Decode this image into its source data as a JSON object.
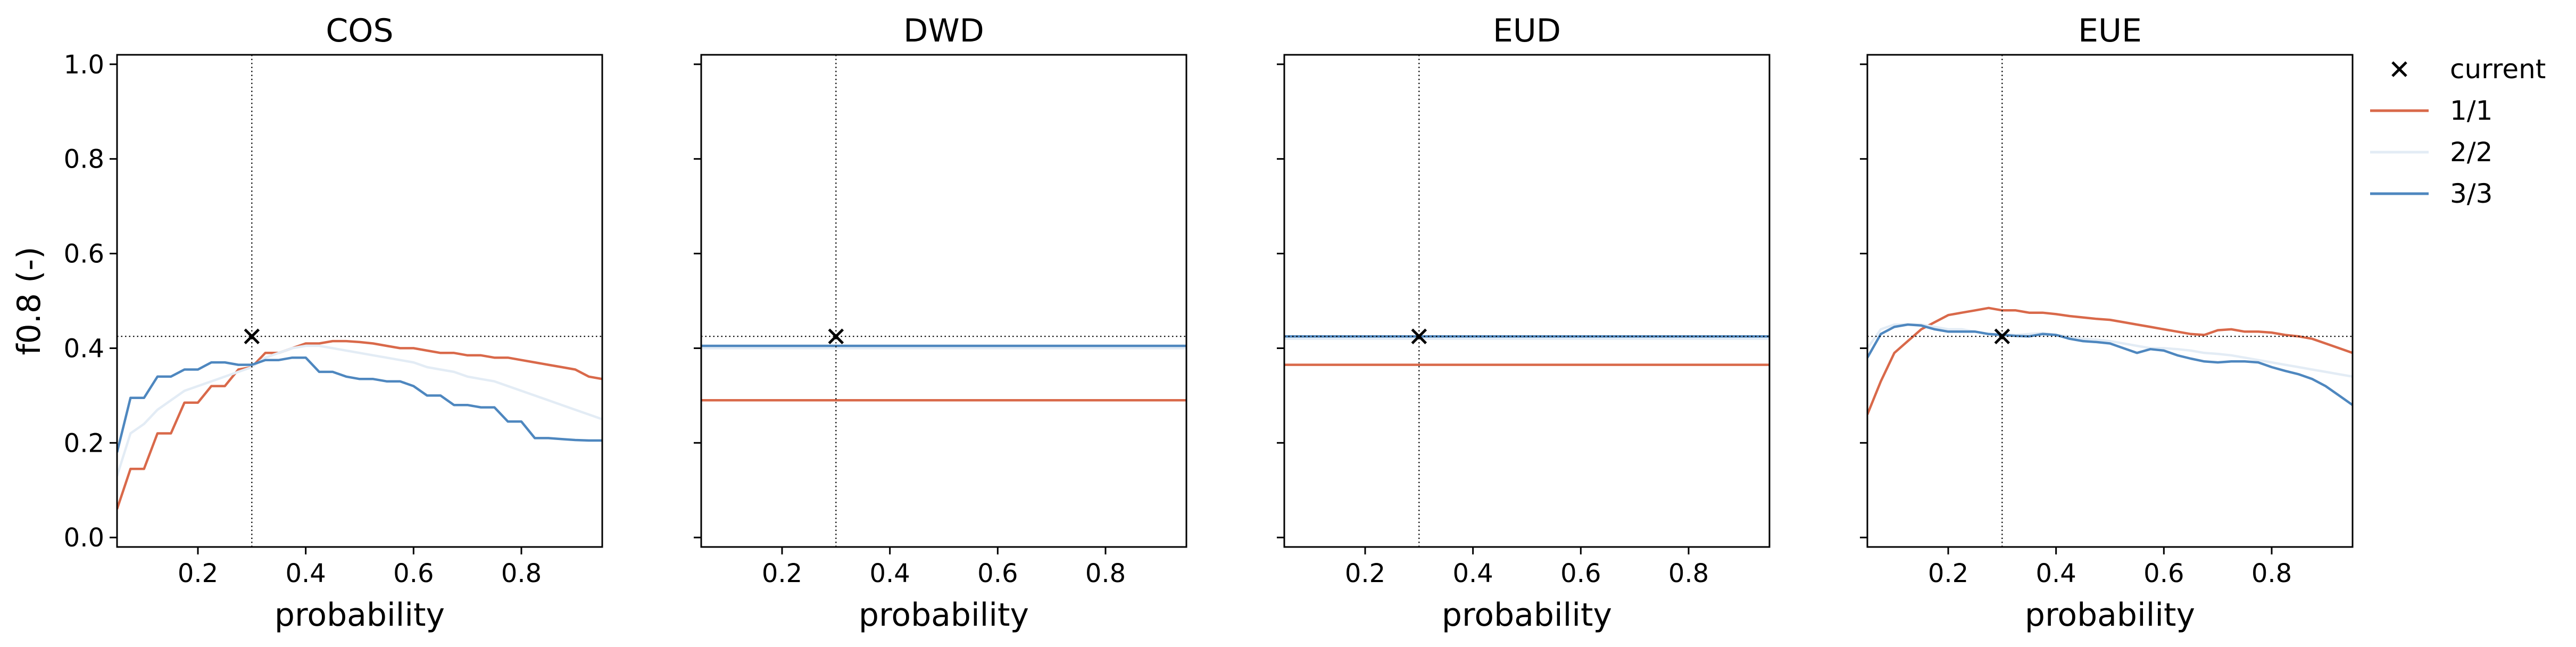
{
  "chart_data": [
    {
      "type": "line",
      "title": "COS",
      "xlabel": "probability",
      "ylabel": "f0.8 (-)",
      "xlim": [
        0.05,
        0.95
      ],
      "ylim": [
        -0.02,
        1.02
      ],
      "xticks": [
        "0.2",
        "0.4",
        "0.6",
        "0.8"
      ],
      "yticks": [
        "0.0",
        "0.2",
        "0.4",
        "0.6",
        "0.8",
        "1.0"
      ],
      "reference_x": 0.3,
      "reference_y": 0.425,
      "current": {
        "x": 0.3,
        "y": 0.425
      },
      "x": [
        0.05,
        0.075,
        0.1,
        0.125,
        0.15,
        0.175,
        0.2,
        0.225,
        0.25,
        0.275,
        0.3,
        0.325,
        0.35,
        0.375,
        0.4,
        0.425,
        0.45,
        0.475,
        0.5,
        0.525,
        0.55,
        0.575,
        0.6,
        0.625,
        0.65,
        0.675,
        0.7,
        0.725,
        0.75,
        0.775,
        0.8,
        0.825,
        0.85,
        0.875,
        0.9,
        0.925,
        0.95
      ],
      "series": [
        {
          "name": "1/1",
          "values": [
            0.06,
            0.145,
            0.145,
            0.22,
            0.22,
            0.285,
            0.285,
            0.32,
            0.32,
            0.355,
            0.36,
            0.39,
            0.39,
            0.4,
            0.41,
            0.41,
            0.415,
            0.415,
            0.413,
            0.41,
            0.405,
            0.4,
            0.4,
            0.395,
            0.39,
            0.39,
            0.385,
            0.385,
            0.38,
            0.38,
            0.375,
            0.37,
            0.365,
            0.36,
            0.355,
            0.34,
            0.335
          ]
        },
        {
          "name": "2/2",
          "values": [
            0.13,
            0.22,
            0.24,
            0.27,
            0.29,
            0.31,
            0.32,
            0.33,
            0.34,
            0.35,
            0.36,
            0.38,
            0.39,
            0.4,
            0.405,
            0.405,
            0.4,
            0.395,
            0.39,
            0.385,
            0.38,
            0.375,
            0.37,
            0.36,
            0.355,
            0.35,
            0.34,
            0.335,
            0.33,
            0.32,
            0.31,
            0.3,
            0.29,
            0.28,
            0.27,
            0.26,
            0.25
          ]
        },
        {
          "name": "3/3",
          "values": [
            0.18,
            0.295,
            0.295,
            0.34,
            0.34,
            0.355,
            0.355,
            0.37,
            0.37,
            0.365,
            0.365,
            0.375,
            0.375,
            0.38,
            0.38,
            0.35,
            0.35,
            0.34,
            0.335,
            0.335,
            0.33,
            0.33,
            0.32,
            0.3,
            0.3,
            0.28,
            0.28,
            0.275,
            0.275,
            0.245,
            0.245,
            0.21,
            0.21,
            0.208,
            0.206,
            0.205,
            0.205
          ]
        }
      ]
    },
    {
      "type": "line",
      "title": "DWD",
      "xlabel": "probability",
      "ylabel": "",
      "xlim": [
        0.05,
        0.95
      ],
      "ylim": [
        -0.02,
        1.02
      ],
      "xticks": [
        "0.2",
        "0.4",
        "0.6",
        "0.8"
      ],
      "yticks": [],
      "reference_x": 0.3,
      "reference_y": 0.425,
      "current": {
        "x": 0.3,
        "y": 0.425
      },
      "x": [
        0.05,
        0.95
      ],
      "series": [
        {
          "name": "1/1",
          "values": [
            0.29,
            0.29
          ]
        },
        {
          "name": "2/2",
          "values": [
            0.4,
            0.4
          ]
        },
        {
          "name": "3/3",
          "values": [
            0.405,
            0.405
          ]
        }
      ]
    },
    {
      "type": "line",
      "title": "EUD",
      "xlabel": "probability",
      "ylabel": "",
      "xlim": [
        0.05,
        0.95
      ],
      "ylim": [
        -0.02,
        1.02
      ],
      "xticks": [
        "0.2",
        "0.4",
        "0.6",
        "0.8"
      ],
      "yticks": [],
      "reference_x": 0.3,
      "reference_y": 0.425,
      "current": {
        "x": 0.3,
        "y": 0.425
      },
      "x": [
        0.05,
        0.95
      ],
      "series": [
        {
          "name": "1/1",
          "values": [
            0.365,
            0.365
          ]
        },
        {
          "name": "2/2",
          "values": [
            0.42,
            0.42
          ]
        },
        {
          "name": "3/3",
          "values": [
            0.425,
            0.425
          ]
        }
      ]
    },
    {
      "type": "line",
      "title": "EUE",
      "xlabel": "probability",
      "ylabel": "",
      "xlim": [
        0.05,
        0.95
      ],
      "ylim": [
        -0.02,
        1.02
      ],
      "xticks": [
        "0.2",
        "0.4",
        "0.6",
        "0.8"
      ],
      "yticks": [],
      "reference_x": 0.3,
      "reference_y": 0.425,
      "current": {
        "x": 0.3,
        "y": 0.425
      },
      "x": [
        0.05,
        0.075,
        0.1,
        0.125,
        0.15,
        0.175,
        0.2,
        0.225,
        0.25,
        0.275,
        0.3,
        0.325,
        0.35,
        0.375,
        0.4,
        0.425,
        0.45,
        0.475,
        0.5,
        0.525,
        0.55,
        0.575,
        0.6,
        0.625,
        0.65,
        0.675,
        0.7,
        0.725,
        0.75,
        0.775,
        0.8,
        0.825,
        0.85,
        0.875,
        0.9,
        0.925,
        0.95
      ],
      "series": [
        {
          "name": "1/1",
          "values": [
            0.26,
            0.33,
            0.39,
            0.415,
            0.44,
            0.455,
            0.47,
            0.475,
            0.48,
            0.485,
            0.48,
            0.48,
            0.475,
            0.475,
            0.472,
            0.468,
            0.465,
            0.462,
            0.46,
            0.455,
            0.45,
            0.445,
            0.44,
            0.435,
            0.43,
            0.428,
            0.438,
            0.44,
            0.435,
            0.435,
            0.433,
            0.428,
            0.425,
            0.42,
            0.41,
            0.4,
            0.39
          ]
        },
        {
          "name": "2/2",
          "values": [
            0.4,
            0.44,
            0.45,
            0.45,
            0.45,
            0.445,
            0.44,
            0.44,
            0.435,
            0.43,
            0.43,
            0.428,
            0.43,
            0.432,
            0.428,
            0.425,
            0.42,
            0.418,
            0.415,
            0.41,
            0.405,
            0.4,
            0.4,
            0.398,
            0.395,
            0.39,
            0.388,
            0.385,
            0.38,
            0.375,
            0.37,
            0.365,
            0.36,
            0.355,
            0.35,
            0.345,
            0.34
          ]
        },
        {
          "name": "3/3",
          "values": [
            0.38,
            0.43,
            0.445,
            0.45,
            0.448,
            0.44,
            0.435,
            0.435,
            0.435,
            0.43,
            0.428,
            0.426,
            0.425,
            0.43,
            0.428,
            0.42,
            0.415,
            0.413,
            0.41,
            0.4,
            0.39,
            0.398,
            0.395,
            0.385,
            0.378,
            0.372,
            0.37,
            0.372,
            0.372,
            0.37,
            0.36,
            0.352,
            0.345,
            0.335,
            0.32,
            0.3,
            0.28
          ]
        }
      ]
    }
  ],
  "legend": {
    "placement": "right, outside top",
    "items": [
      {
        "label": "current",
        "marker": "x"
      },
      {
        "label": "1/1",
        "marker": "line"
      },
      {
        "label": "2/2",
        "marker": "line"
      },
      {
        "label": "3/3",
        "marker": "line"
      }
    ]
  },
  "colors": {
    "1/1": "#d9694a",
    "2/2": "#e3ecf5",
    "3/3": "#4e87bf",
    "current": "#000000",
    "reference": "#000000",
    "axes": "#000000"
  }
}
